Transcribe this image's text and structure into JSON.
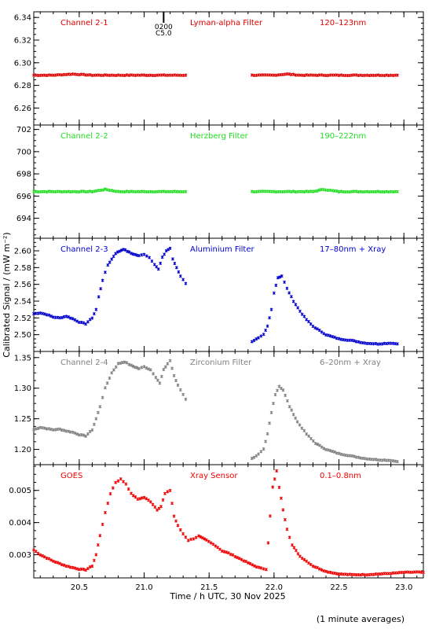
{
  "figure": {
    "ylabel": "Calibrated Signal / (mW m⁻²)",
    "xlabel": "Time / h UTC, 30 Nov 2025",
    "footnote": "(1 minute averages)",
    "marker": {
      "time": "0200",
      "label": "C5.0",
      "x": 21.15
    }
  },
  "chart_data": [
    {
      "type": "scatter",
      "channel": "Channel 2-1",
      "filter": "Lyman-alpha Filter",
      "band": "120–123nm",
      "color": "#dd0000",
      "xlim": [
        20.15,
        23.15
      ],
      "ylim": [
        6.245,
        6.345
      ],
      "yticks": [
        6.26,
        6.28,
        6.3,
        6.32,
        6.34
      ],
      "ytick_labels": [
        "6.26",
        "6.28",
        "6.30",
        "6.32",
        "6.34"
      ],
      "gaps": [
        [
          21.32,
          21.83
        ]
      ],
      "points": [
        [
          20.15,
          6.289
        ],
        [
          20.3,
          6.289
        ],
        [
          20.45,
          6.29
        ],
        [
          20.6,
          6.289
        ],
        [
          20.75,
          6.289
        ],
        [
          20.9,
          6.289
        ],
        [
          21.05,
          6.289
        ],
        [
          21.2,
          6.289
        ],
        [
          21.32,
          6.289
        ],
        [
          21.83,
          6.289
        ],
        [
          22.0,
          6.289
        ],
        [
          22.1,
          6.29
        ],
        [
          22.2,
          6.289
        ],
        [
          22.4,
          6.289
        ],
        [
          22.6,
          6.289
        ],
        [
          22.8,
          6.289
        ],
        [
          22.95,
          6.289
        ]
      ]
    },
    {
      "type": "scatter",
      "channel": "Channel 2-2",
      "filter": "Herzberg Filter",
      "band": "190–222nm",
      "color": "#22dd22",
      "xlim": [
        20.15,
        23.15
      ],
      "ylim": [
        692.2,
        702.4
      ],
      "yticks": [
        694,
        696,
        698,
        700,
        702
      ],
      "ytick_labels": [
        "694",
        "696",
        "698",
        "700",
        "702"
      ],
      "gaps": [
        [
          21.32,
          21.83
        ]
      ],
      "points": [
        [
          20.15,
          696.4
        ],
        [
          20.4,
          696.4
        ],
        [
          20.6,
          696.4
        ],
        [
          20.7,
          696.6
        ],
        [
          20.8,
          696.4
        ],
        [
          21.0,
          696.4
        ],
        [
          21.2,
          696.4
        ],
        [
          21.32,
          696.4
        ],
        [
          21.83,
          696.4
        ],
        [
          22.1,
          696.4
        ],
        [
          22.3,
          696.4
        ],
        [
          22.38,
          696.6
        ],
        [
          22.5,
          696.4
        ],
        [
          22.7,
          696.4
        ],
        [
          22.95,
          696.4
        ]
      ]
    },
    {
      "type": "scatter",
      "channel": "Channel 2-3",
      "filter": "Aluminium Filter",
      "band": "17–80nm + Xray",
      "color": "#0000cc",
      "xlim": [
        20.15,
        23.15
      ],
      "ylim": [
        2.48,
        2.615
      ],
      "yticks": [
        2.5,
        2.52,
        2.54,
        2.56,
        2.58,
        2.6
      ],
      "ytick_labels": [
        "2.50",
        "2.52",
        "2.54",
        "2.56",
        "2.58",
        "2.60"
      ],
      "gaps": [
        [
          21.32,
          21.83
        ]
      ],
      "points": [
        [
          20.15,
          2.525
        ],
        [
          20.2,
          2.526
        ],
        [
          20.25,
          2.524
        ],
        [
          20.3,
          2.521
        ],
        [
          20.35,
          2.52
        ],
        [
          20.4,
          2.522
        ],
        [
          20.45,
          2.519
        ],
        [
          20.5,
          2.515
        ],
        [
          20.55,
          2.513
        ],
        [
          20.6,
          2.52
        ],
        [
          20.63,
          2.53
        ],
        [
          20.65,
          2.545
        ],
        [
          20.68,
          2.565
        ],
        [
          20.72,
          2.583
        ],
        [
          20.78,
          2.597
        ],
        [
          20.84,
          2.602
        ],
        [
          20.9,
          2.597
        ],
        [
          20.96,
          2.594
        ],
        [
          21.0,
          2.596
        ],
        [
          21.04,
          2.592
        ],
        [
          21.08,
          2.584
        ],
        [
          21.11,
          2.578
        ],
        [
          21.14,
          2.592
        ],
        [
          21.17,
          2.6
        ],
        [
          21.2,
          2.603
        ],
        [
          21.22,
          2.59
        ],
        [
          21.25,
          2.58
        ],
        [
          21.28,
          2.57
        ],
        [
          21.32,
          2.561
        ],
        [
          21.83,
          2.492
        ],
        [
          21.88,
          2.496
        ],
        [
          21.92,
          2.5
        ],
        [
          21.95,
          2.51
        ],
        [
          21.98,
          2.53
        ],
        [
          22.0,
          2.55
        ],
        [
          22.03,
          2.568
        ],
        [
          22.06,
          2.57
        ],
        [
          22.1,
          2.555
        ],
        [
          22.15,
          2.54
        ],
        [
          22.2,
          2.528
        ],
        [
          22.25,
          2.518
        ],
        [
          22.3,
          2.51
        ],
        [
          22.4,
          2.5
        ],
        [
          22.5,
          2.495
        ],
        [
          22.6,
          2.493
        ],
        [
          22.7,
          2.49
        ],
        [
          22.8,
          2.489
        ],
        [
          22.9,
          2.49
        ],
        [
          22.95,
          2.489
        ]
      ]
    },
    {
      "type": "scatter",
      "channel": "Channel 2-4",
      "filter": "Zirconium Filter",
      "band": "6–20nm + Xray",
      "color": "#808080",
      "xlim": [
        20.15,
        23.15
      ],
      "ylim": [
        1.175,
        1.36
      ],
      "yticks": [
        1.2,
        1.25,
        1.3,
        1.35
      ],
      "ytick_labels": [
        "1.20",
        "1.25",
        "1.30",
        "1.35"
      ],
      "gaps": [
        [
          21.32,
          21.83
        ]
      ],
      "points": [
        [
          20.15,
          1.232
        ],
        [
          20.2,
          1.236
        ],
        [
          20.25,
          1.234
        ],
        [
          20.3,
          1.232
        ],
        [
          20.35,
          1.233
        ],
        [
          20.4,
          1.23
        ],
        [
          20.45,
          1.228
        ],
        [
          20.5,
          1.224
        ],
        [
          20.55,
          1.222
        ],
        [
          20.6,
          1.232
        ],
        [
          20.63,
          1.25
        ],
        [
          20.66,
          1.27
        ],
        [
          20.7,
          1.3
        ],
        [
          20.75,
          1.325
        ],
        [
          20.8,
          1.34
        ],
        [
          20.85,
          1.343
        ],
        [
          20.9,
          1.337
        ],
        [
          20.96,
          1.332
        ],
        [
          21.0,
          1.335
        ],
        [
          21.05,
          1.33
        ],
        [
          21.09,
          1.318
        ],
        [
          21.12,
          1.308
        ],
        [
          21.15,
          1.33
        ],
        [
          21.18,
          1.34
        ],
        [
          21.2,
          1.345
        ],
        [
          21.23,
          1.32
        ],
        [
          21.26,
          1.305
        ],
        [
          21.3,
          1.29
        ],
        [
          21.32,
          1.282
        ],
        [
          21.83,
          1.185
        ],
        [
          21.88,
          1.192
        ],
        [
          21.92,
          1.2
        ],
        [
          21.95,
          1.225
        ],
        [
          21.98,
          1.26
        ],
        [
          22.01,
          1.29
        ],
        [
          22.04,
          1.303
        ],
        [
          22.07,
          1.297
        ],
        [
          22.12,
          1.27
        ],
        [
          22.18,
          1.245
        ],
        [
          22.25,
          1.225
        ],
        [
          22.32,
          1.21
        ],
        [
          22.4,
          1.2
        ],
        [
          22.5,
          1.193
        ],
        [
          22.6,
          1.189
        ],
        [
          22.7,
          1.185
        ],
        [
          22.8,
          1.183
        ],
        [
          22.9,
          1.182
        ],
        [
          22.95,
          1.18
        ]
      ]
    },
    {
      "type": "scatter",
      "channel": "GOES",
      "filter": "Xray Sensor",
      "band": "0.1–0.8nm",
      "color": "#ee0000",
      "xlim": [
        20.15,
        23.15
      ],
      "ylim": [
        0.00228,
        0.0058
      ],
      "yticks": [
        0.003,
        0.004,
        0.005
      ],
      "ytick_labels": [
        "0.003",
        "0.004",
        "0.005"
      ],
      "gaps": [
        [
          21.95,
          21.96
        ]
      ],
      "points": [
        [
          20.15,
          0.00315
        ],
        [
          20.2,
          0.003
        ],
        [
          20.3,
          0.0028
        ],
        [
          20.4,
          0.00265
        ],
        [
          20.5,
          0.00255
        ],
        [
          20.55,
          0.00253
        ],
        [
          20.6,
          0.00265
        ],
        [
          20.63,
          0.003
        ],
        [
          20.66,
          0.0036
        ],
        [
          20.7,
          0.0043
        ],
        [
          20.74,
          0.0049
        ],
        [
          20.78,
          0.00525
        ],
        [
          20.82,
          0.00535
        ],
        [
          20.86,
          0.0052
        ],
        [
          20.9,
          0.0049
        ],
        [
          20.95,
          0.00473
        ],
        [
          21.0,
          0.00478
        ],
        [
          21.05,
          0.00465
        ],
        [
          21.1,
          0.0044
        ],
        [
          21.13,
          0.0045
        ],
        [
          21.16,
          0.0049
        ],
        [
          21.2,
          0.005
        ],
        [
          21.23,
          0.0042
        ],
        [
          21.26,
          0.0039
        ],
        [
          21.3,
          0.00365
        ],
        [
          21.34,
          0.00345
        ],
        [
          21.38,
          0.0035
        ],
        [
          21.42,
          0.00358
        ],
        [
          21.48,
          0.00345
        ],
        [
          21.55,
          0.00328
        ],
        [
          21.6,
          0.00312
        ],
        [
          21.65,
          0.00305
        ],
        [
          21.7,
          0.00295
        ],
        [
          21.75,
          0.00285
        ],
        [
          21.8,
          0.00275
        ],
        [
          21.85,
          0.00265
        ],
        [
          21.9,
          0.00258
        ],
        [
          21.94,
          0.00255
        ],
        [
          21.97,
          0.0042
        ],
        [
          21.99,
          0.0051
        ],
        [
          22.02,
          0.0056
        ],
        [
          22.04,
          0.0051
        ],
        [
          22.07,
          0.0044
        ],
        [
          22.1,
          0.0038
        ],
        [
          22.14,
          0.0033
        ],
        [
          22.2,
          0.00295
        ],
        [
          22.3,
          0.00265
        ],
        [
          22.4,
          0.00248
        ],
        [
          22.5,
          0.0024
        ],
        [
          22.6,
          0.00238
        ],
        [
          22.7,
          0.00238
        ],
        [
          22.8,
          0.0024
        ],
        [
          22.9,
          0.00242
        ],
        [
          23.0,
          0.00245
        ],
        [
          23.1,
          0.00246
        ],
        [
          23.15,
          0.00245
        ]
      ]
    }
  ],
  "x_axis": {
    "ticks": [
      20.5,
      21.0,
      21.5,
      22.0,
      22.5,
      23.0
    ],
    "tick_labels": [
      "20.5",
      "21.0",
      "21.5",
      "22.0",
      "22.5",
      "23.0"
    ],
    "minor_step": 0.1
  }
}
